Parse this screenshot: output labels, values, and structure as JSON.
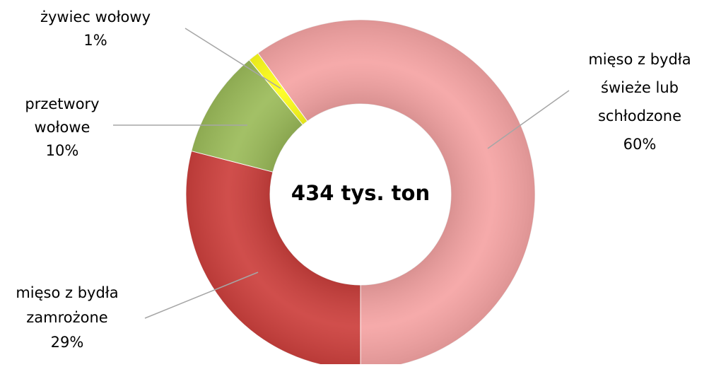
{
  "chart_data": {
    "type": "donut",
    "center_label": "434 tys. ton",
    "categories": [
      [
        "mięso z bydła",
        "świeże lub",
        "schłodzone"
      ],
      [
        "mięso z bydła",
        "zamrożone"
      ],
      [
        "przetwory",
        "wołowe"
      ],
      [
        "żywiec wołowy"
      ]
    ],
    "values": [
      60,
      29,
      10,
      1
    ],
    "value_labels": [
      "60%",
      "29%",
      "10%",
      "1%"
    ],
    "colors": [
      "#f5a3a3",
      "#cc3f3c",
      "#9bbb59",
      "#ffff1a"
    ]
  }
}
